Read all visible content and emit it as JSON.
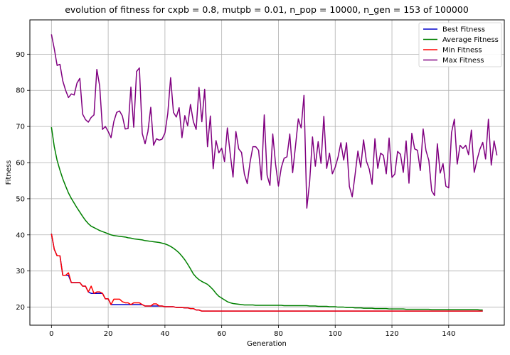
{
  "chart_data": {
    "type": "line",
    "title": "evolution of fitness for cxpb = 0.8, mutpb = 0.01, n_pop = 10000, n_gen = 153 of 100000",
    "xlabel": "Generation",
    "ylabel": "Fitness",
    "xlim": [
      -7.6,
      159.6
    ],
    "ylim": [
      15.0,
      99.5
    ],
    "xticks": [
      "0",
      "20",
      "40",
      "60",
      "80",
      "100",
      "120",
      "140"
    ],
    "yticks": [
      "20",
      "30",
      "40",
      "50",
      "60",
      "70",
      "80",
      "90"
    ],
    "grid": true,
    "legend_position": "top-right",
    "series": [
      {
        "name": "Best Fitness",
        "color": "#0000cc",
        "values": [
          40.3,
          36,
          34.2,
          34.2,
          28.8,
          28.8,
          28.8,
          26.8,
          26.8,
          26.8,
          26.8,
          25.8,
          25.8,
          24.2,
          23.8,
          23.8,
          23.8,
          23.8,
          23.8,
          22.3,
          22.3,
          20.7,
          20.7,
          20.7,
          20.7,
          20.7,
          20.7,
          20.7,
          20.7,
          20.7,
          20.7,
          20.7,
          20.7,
          20.3,
          20.3,
          20.3,
          20.3,
          20.3,
          20.3,
          20.3,
          20.1,
          20.1,
          20.1,
          20.1,
          19.9,
          19.9,
          19.9,
          19.8,
          19.8,
          19.6,
          19.6,
          19.2,
          19.2,
          18.9,
          18.9,
          18.9,
          18.9,
          18.9,
          18.9,
          18.9,
          18.9,
          18.9,
          18.9,
          18.9,
          18.9,
          18.9,
          18.9,
          18.9,
          18.9,
          18.9,
          18.9,
          18.9,
          18.9,
          18.9,
          18.9,
          18.9,
          18.9,
          18.9,
          18.9,
          18.9,
          18.9,
          18.9,
          18.9,
          18.9,
          18.9,
          18.9,
          18.9,
          18.9,
          18.9,
          18.9,
          18.9,
          18.9,
          18.9,
          18.9,
          18.9,
          18.9,
          18.9,
          18.9,
          18.9,
          18.9,
          18.9,
          18.9,
          18.9,
          18.9,
          18.9,
          18.9,
          18.9,
          18.9,
          18.9,
          18.9,
          18.9,
          18.9,
          18.9,
          18.9,
          18.9,
          18.9,
          18.9,
          18.9,
          18.9,
          18.9,
          18.9,
          18.9,
          18.9,
          18.9,
          18.9,
          18.9,
          18.9,
          18.9,
          18.9,
          18.9,
          18.9,
          18.9,
          18.9,
          18.9,
          18.9,
          18.9,
          18.9,
          18.9,
          18.9,
          18.9,
          18.9,
          18.9,
          18.9,
          18.9,
          18.9,
          18.9,
          18.9,
          18.9,
          18.9,
          18.9,
          18.9,
          18.9,
          18.9
        ]
      },
      {
        "name": "Average Fitness",
        "color": "#008000",
        "values": [
          69.8,
          64.4,
          60.6,
          57.9,
          55.5,
          53.5,
          51.6,
          50.1,
          48.8,
          47.5,
          46.3,
          45.1,
          44,
          43.1,
          42.4,
          42,
          41.6,
          41.2,
          40.9,
          40.6,
          40.3,
          40,
          39.8,
          39.7,
          39.6,
          39.5,
          39.4,
          39.2,
          39.1,
          38.9,
          38.8,
          38.7,
          38.6,
          38.4,
          38.3,
          38.2,
          38.1,
          38,
          37.9,
          37.7,
          37.5,
          37.2,
          36.8,
          36.3,
          35.7,
          35,
          34.1,
          33.1,
          31.9,
          30.6,
          29.2,
          28.3,
          27.6,
          27.1,
          26.7,
          26.3,
          25.6,
          24.8,
          23.8,
          23,
          22.5,
          22,
          21.5,
          21.2,
          21,
          20.9,
          20.8,
          20.7,
          20.6,
          20.6,
          20.6,
          20.6,
          20.5,
          20.5,
          20.5,
          20.5,
          20.5,
          20.5,
          20.5,
          20.5,
          20.5,
          20.5,
          20.4,
          20.4,
          20.4,
          20.4,
          20.4,
          20.4,
          20.4,
          20.4,
          20.4,
          20.3,
          20.3,
          20.3,
          20.2,
          20.2,
          20.2,
          20.2,
          20.1,
          20.1,
          20.1,
          20,
          20,
          20,
          19.9,
          19.9,
          19.9,
          19.8,
          19.8,
          19.8,
          19.7,
          19.7,
          19.7,
          19.7,
          19.6,
          19.6,
          19.6,
          19.6,
          19.6,
          19.5,
          19.5,
          19.5,
          19.5,
          19.5,
          19.5,
          19.4,
          19.4,
          19.4,
          19.4,
          19.4,
          19.4,
          19.4,
          19.4,
          19.4,
          19.3,
          19.3,
          19.3,
          19.3,
          19.3,
          19.3,
          19.3,
          19.3,
          19.3,
          19.3,
          19.3,
          19.3,
          19.3,
          19.3,
          19.3,
          19.3,
          19.3,
          19.2,
          19.2
        ]
      },
      {
        "name": "Min Fitness",
        "color": "#ff0000",
        "values": [
          40.3,
          36,
          34.2,
          34.2,
          28.8,
          28.8,
          29.5,
          26.8,
          26.8,
          26.8,
          26.8,
          25.8,
          25.8,
          24.2,
          25.8,
          23.8,
          24.2,
          24.2,
          23.8,
          22.3,
          22.3,
          20.7,
          22.2,
          22.2,
          22.2,
          21.5,
          21.2,
          21.2,
          20.7,
          21.2,
          21.2,
          21.2,
          20.7,
          20.3,
          20.3,
          20.3,
          20.9,
          20.9,
          20.3,
          20.3,
          20.1,
          20.1,
          20.1,
          20.1,
          19.9,
          19.9,
          19.9,
          19.8,
          19.8,
          19.6,
          19.6,
          19.2,
          19.2,
          18.9,
          18.9,
          18.9,
          18.9,
          18.9,
          18.9,
          18.9,
          18.9,
          18.9,
          18.9,
          18.9,
          18.9,
          18.9,
          18.9,
          18.9,
          18.9,
          18.9,
          18.9,
          18.9,
          18.9,
          18.9,
          18.9,
          18.9,
          18.9,
          18.9,
          18.9,
          18.9,
          18.9,
          18.9,
          18.9,
          18.9,
          18.9,
          18.9,
          18.9,
          18.9,
          18.9,
          18.9,
          18.9,
          18.9,
          18.9,
          18.9,
          18.9,
          18.9,
          18.9,
          18.9,
          18.9,
          18.9,
          18.9,
          18.9,
          18.9,
          18.9,
          18.9,
          18.9,
          18.9,
          18.9,
          18.9,
          18.9,
          18.9,
          18.9,
          18.9,
          18.9,
          18.9,
          18.9,
          18.9,
          18.9,
          18.9,
          18.9,
          18.9,
          18.9,
          18.9,
          18.9,
          18.9,
          18.9,
          18.9,
          18.9,
          18.9,
          18.9,
          18.9,
          18.9,
          18.9,
          18.9,
          18.9,
          18.9,
          18.9,
          18.9,
          18.9,
          18.9,
          18.9,
          18.9,
          18.9,
          18.9,
          18.9,
          18.9,
          18.9,
          18.9,
          18.9,
          18.9,
          18.9,
          18.9,
          18.9
        ]
      },
      {
        "name": "Max Fitness",
        "color": "#800080",
        "values": [
          95.5,
          91.5,
          86.9,
          87.2,
          82.6,
          80,
          78,
          79,
          78.7,
          82,
          83.3,
          73.4,
          71.9,
          71.2,
          72.5,
          73.2,
          85.8,
          81.2,
          69.2,
          70,
          68.6,
          66.9,
          71.4,
          73.9,
          74.3,
          72.9,
          69.3,
          69.4,
          80.9,
          69.8,
          85.2,
          86.2,
          68.1,
          65.2,
          68.6,
          75.3,
          64.8,
          66.6,
          66.2,
          66.5,
          68.2,
          73.6,
          83.5,
          73.9,
          72.6,
          75.2,
          66.9,
          73,
          70.2,
          76.1,
          71.4,
          69.2,
          80.8,
          71.3,
          80.3,
          64.4,
          72.9,
          58.3,
          66.1,
          62.7,
          64,
          60.3,
          69.6,
          62.5,
          56,
          68.6,
          63.8,
          62.8,
          56.8,
          54.2,
          60.1,
          64.4,
          64.4,
          63.4,
          55.2,
          73.2,
          56.5,
          53.7,
          67.9,
          59.5,
          53.5,
          58.6,
          61.2,
          61.6,
          67.9,
          57.2,
          64.5,
          72.1,
          69.6,
          78.6,
          47.4,
          54.7,
          67.1,
          59,
          65.8,
          59.8,
          72.8,
          58.4,
          62.6,
          56.9,
          58.7,
          61.5,
          65.5,
          60.7,
          65.5,
          53.4,
          50.5,
          56.6,
          63.2,
          58.7,
          66.3,
          60.4,
          58.2,
          54,
          66.6,
          58.4,
          62.6,
          62,
          56.9,
          66.8,
          55.9,
          56.8,
          63.1,
          62.3,
          57.3,
          66,
          54.3,
          68.1,
          63.8,
          63.4,
          57.8,
          69.3,
          63.3,
          60.6,
          52.2,
          50.9,
          65.2,
          57.1,
          59.7,
          53.5,
          53,
          68.3,
          72,
          59.6,
          64.8,
          63.9,
          64.8,
          62.2,
          69,
          57.3,
          60.8,
          63.7,
          65.6,
          61,
          72,
          59.3,
          66,
          62
        ]
      }
    ]
  }
}
